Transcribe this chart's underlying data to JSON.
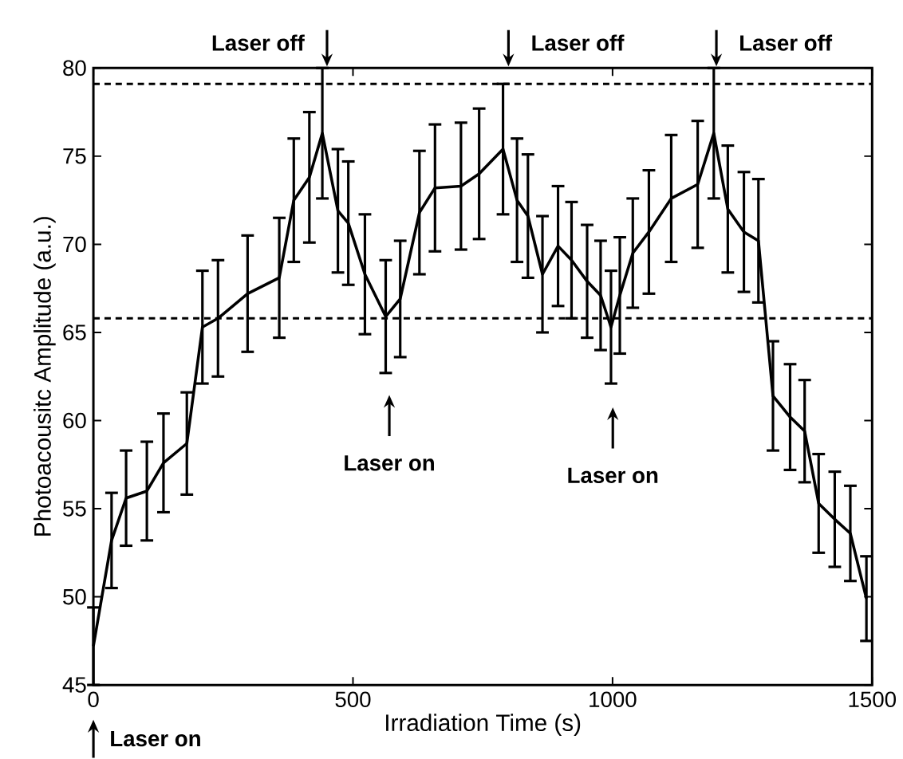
{
  "chart_data": {
    "type": "line",
    "xlabel": "Irradiation Time (s)",
    "ylabel": "Photoacousitc Amplitude (a.u.)",
    "x": [
      0,
      35,
      63,
      103,
      135,
      180,
      210,
      240,
      297,
      358,
      386,
      416,
      441,
      471,
      491,
      523,
      563,
      591,
      628,
      658,
      708,
      743,
      789,
      816,
      837,
      865,
      895,
      921,
      951,
      977,
      997,
      1014,
      1039,
      1070,
      1113,
      1164,
      1195,
      1222,
      1253,
      1281,
      1309,
      1342,
      1370,
      1397,
      1428,
      1458,
      1489
    ],
    "values": [
      47.2,
      53.2,
      55.6,
      56.0,
      57.6,
      58.7,
      65.3,
      65.8,
      67.2,
      68.1,
      72.5,
      73.8,
      76.3,
      71.9,
      71.2,
      68.3,
      65.9,
      66.9,
      71.8,
      73.2,
      73.3,
      74.0,
      75.4,
      72.5,
      71.6,
      68.3,
      69.9,
      69.1,
      67.9,
      67.1,
      65.3,
      67.1,
      69.5,
      70.7,
      72.6,
      73.4,
      76.3,
      72.0,
      70.7,
      70.2,
      61.4,
      60.2,
      59.4,
      55.3,
      54.4,
      53.6,
      49.9
    ],
    "errors": [
      2.2,
      2.7,
      2.7,
      2.8,
      2.8,
      2.9,
      3.2,
      3.3,
      3.3,
      3.4,
      3.5,
      3.7,
      3.7,
      3.5,
      3.5,
      3.4,
      3.2,
      3.3,
      3.5,
      3.6,
      3.6,
      3.7,
      3.7,
      3.5,
      3.5,
      3.3,
      3.4,
      3.3,
      3.2,
      3.1,
      3.2,
      3.3,
      3.1,
      3.5,
      3.6,
      3.6,
      3.7,
      3.6,
      3.4,
      3.5,
      3.1,
      3.0,
      2.9,
      2.8,
      2.7,
      2.7,
      2.4
    ],
    "color": "#000000",
    "xlim": [
      0,
      1500
    ],
    "ylim": [
      45,
      80
    ],
    "xticks": [
      0,
      500,
      1000,
      1500
    ],
    "yticks": [
      45,
      50,
      55,
      60,
      65,
      70,
      75,
      80
    ],
    "ref_lines": [
      {
        "axis": "y",
        "value": 79.1,
        "color": "#000000",
        "line_style": "dashed"
      },
      {
        "axis": "y",
        "value": 65.8,
        "color": "#000000",
        "line_style": "dashed"
      }
    ],
    "annotations": [
      "Laser on",
      "Laser off",
      "Laser on",
      "Laser off",
      "Laser on",
      "Laser off"
    ]
  }
}
